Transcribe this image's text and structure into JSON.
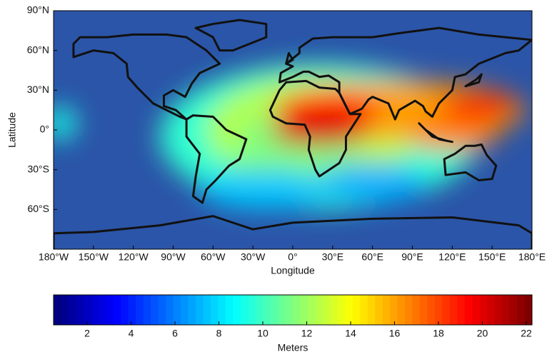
{
  "chart_data": {
    "type": "heatmap-map",
    "xlabel": "Longitude",
    "ylabel": "Latitude",
    "xlim": [
      -180,
      180
    ],
    "ylim": [
      -90,
      90
    ],
    "xticks": [
      {
        "value": -180,
        "label": "180°W"
      },
      {
        "value": -150,
        "label": "150°W"
      },
      {
        "value": -120,
        "label": "120°W"
      },
      {
        "value": -90,
        "label": "90°W"
      },
      {
        "value": -60,
        "label": "60°W"
      },
      {
        "value": -30,
        "label": "30°W"
      },
      {
        "value": 0,
        "label": "0°"
      },
      {
        "value": 30,
        "label": "30°E"
      },
      {
        "value": 60,
        "label": "60°E"
      },
      {
        "value": 90,
        "label": "90°E"
      },
      {
        "value": 120,
        "label": "120°E"
      },
      {
        "value": 150,
        "label": "150°E"
      },
      {
        "value": 180,
        "label": "180°E"
      }
    ],
    "yticks": [
      {
        "value": -60,
        "label": "60°S"
      },
      {
        "value": -30,
        "label": "30°S"
      },
      {
        "value": 0,
        "label": "0°"
      },
      {
        "value": 30,
        "label": "30°N"
      },
      {
        "value": 60,
        "label": "60°N"
      },
      {
        "value": 90,
        "label": "90°N"
      }
    ],
    "colorbar": {
      "label": "Meters",
      "colormap": "jet",
      "lim": [
        0.47,
        22.26
      ],
      "ticks": [
        2,
        4,
        6,
        8,
        10,
        12,
        14,
        16,
        18,
        20,
        22
      ]
    }
  }
}
